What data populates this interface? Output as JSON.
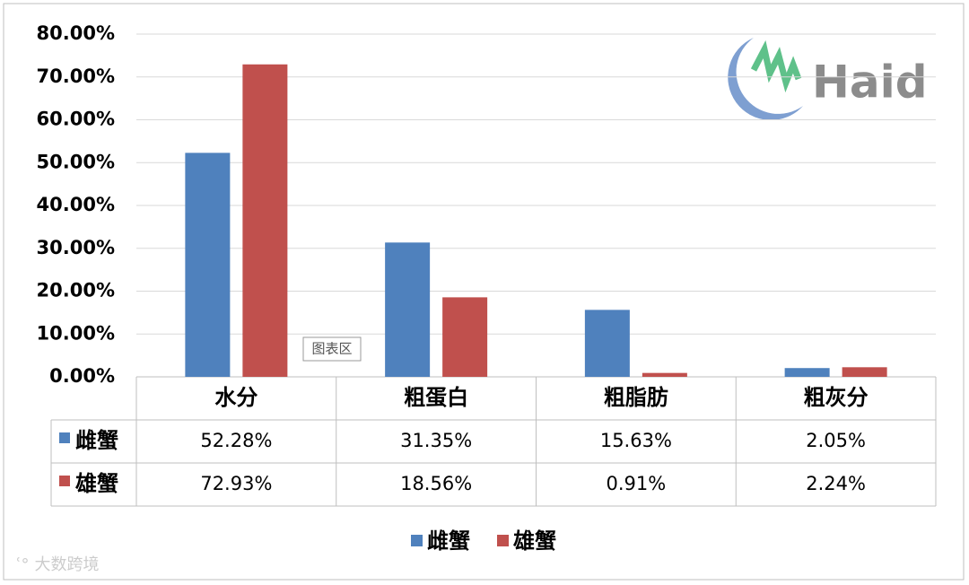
{
  "chart_data": {
    "type": "bar",
    "categories": [
      "水分",
      "粗蛋白",
      "粗脂肪",
      "粗灰分"
    ],
    "series": [
      {
        "name": "雌蟹",
        "color": "#4f81bd",
        "values": [
          52.28,
          31.35,
          15.63,
          2.05
        ],
        "value_labels": [
          "52.28%",
          "31.35%",
          "15.63%",
          "2.05%"
        ]
      },
      {
        "name": "雄蟹",
        "color": "#c0504d",
        "values": [
          72.93,
          18.56,
          0.91,
          2.24
        ],
        "value_labels": [
          "72.93%",
          "18.56%",
          "0.91%",
          "2.24%"
        ]
      }
    ],
    "ylim": [
      0,
      80
    ],
    "yticks": [
      {
        "value": 0,
        "label": "0.00%"
      },
      {
        "value": 10,
        "label": "10.00%"
      },
      {
        "value": 20,
        "label": "20.00%"
      },
      {
        "value": 30,
        "label": "30.00%"
      },
      {
        "value": 40,
        "label": "40.00%"
      },
      {
        "value": 50,
        "label": "50.00%"
      },
      {
        "value": 60,
        "label": "60.00%"
      },
      {
        "value": 70,
        "label": "70.00%"
      },
      {
        "value": 80,
        "label": "80.00%"
      }
    ],
    "grid": true,
    "legend": "bottom",
    "tooltip": "图表区",
    "logo_text": "Haid",
    "watermark": "大数跨境"
  }
}
